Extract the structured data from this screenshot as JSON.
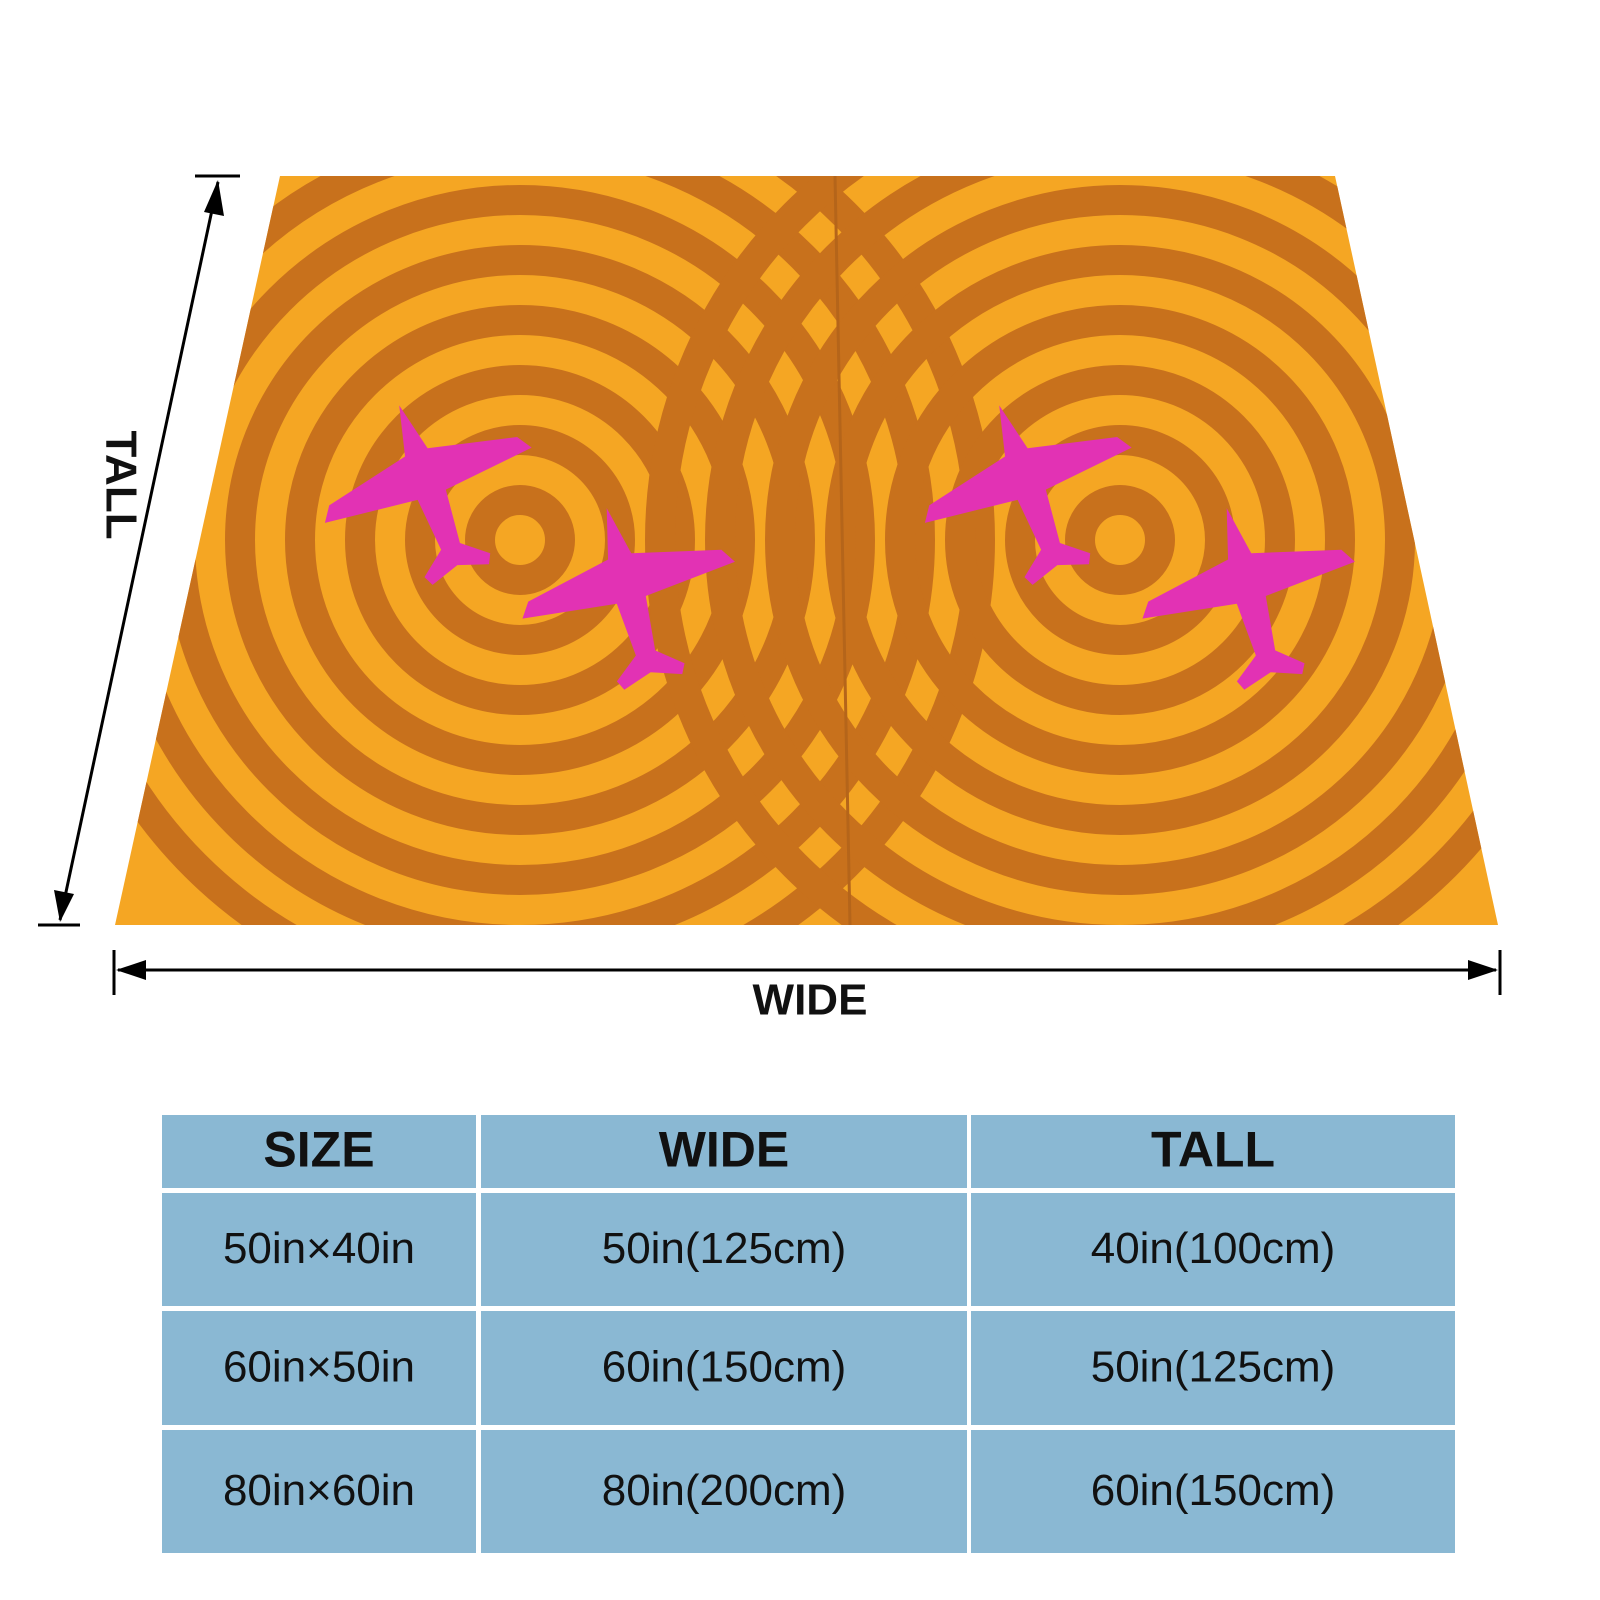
{
  "dimension_labels": {
    "tall": "TALL",
    "wide": "WIDE"
  },
  "table": {
    "header": [
      "SIZE",
      "WIDE",
      "TALL"
    ],
    "rows": [
      [
        "50in×40in",
        "50in(125cm)",
        "40in(100cm)"
      ],
      [
        "60in×50in",
        "60in(150cm)",
        "50in(125cm)"
      ],
      [
        "80in×60in",
        "80in(200cm)",
        "60in(150cm)"
      ]
    ]
  }
}
